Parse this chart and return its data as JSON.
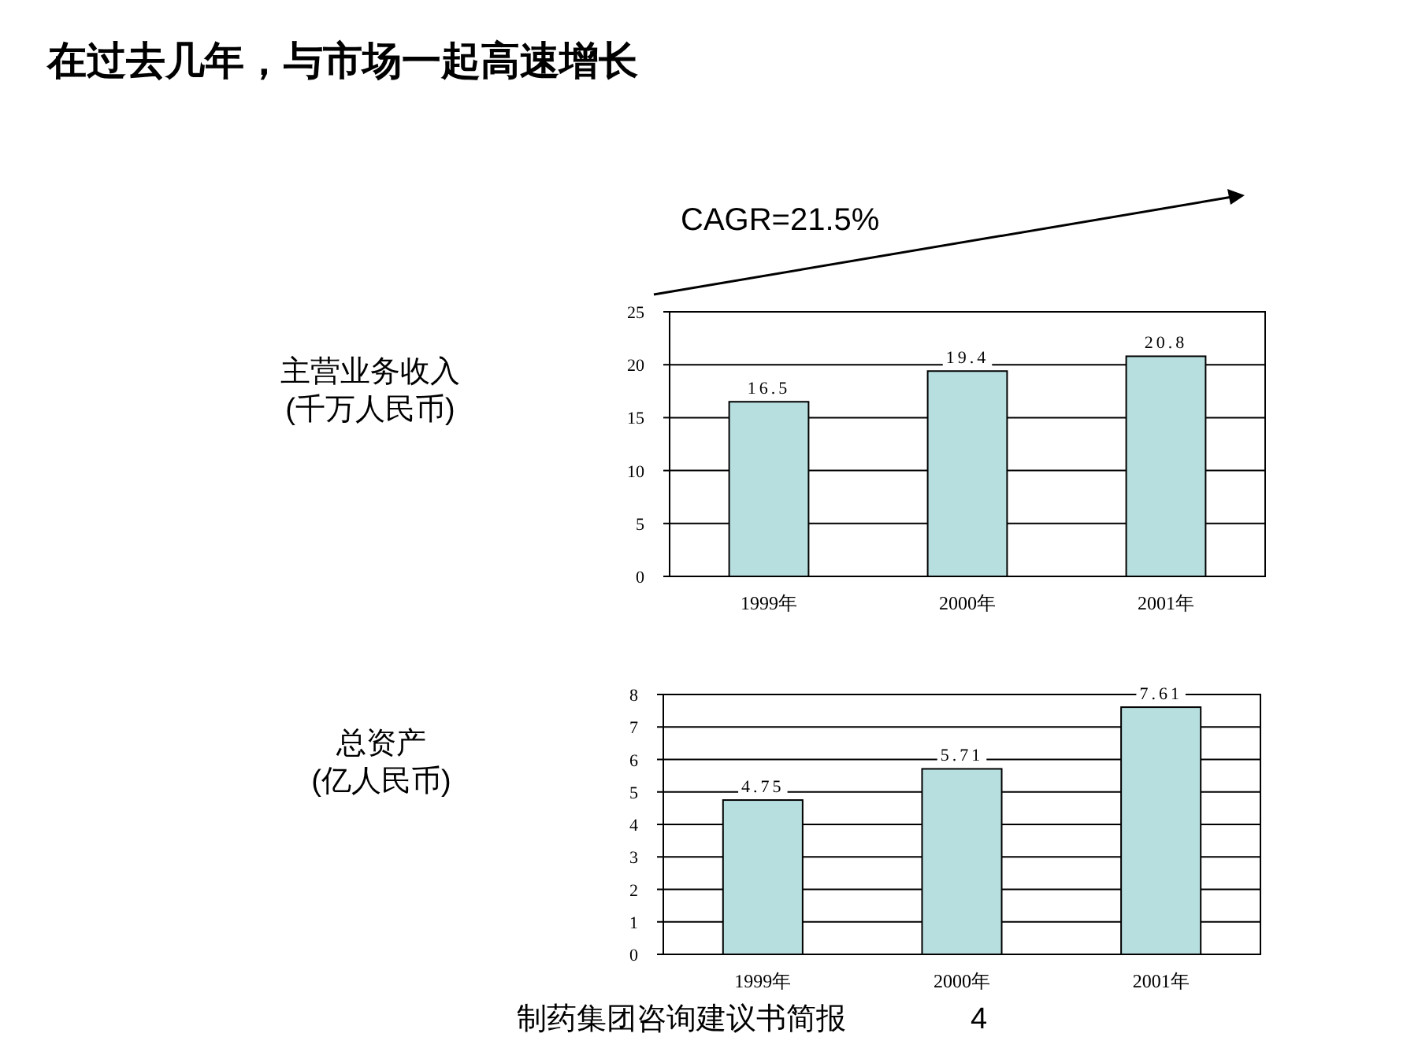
{
  "chart_data": [
    {
      "type": "bar",
      "title": "在过去几年，与市场一起高速增长",
      "ylabel": "主营业务收入\n(千万人民币)",
      "annotations": [
        "CAGR=21.5%"
      ],
      "categories": [
        "1999年",
        "2000年",
        "2001年"
      ],
      "values": [
        16.5,
        19.4,
        20.8
      ],
      "color": "#b8dfe0",
      "ylim": [
        0,
        25
      ],
      "yticks": [
        0,
        5,
        10,
        15,
        20,
        25
      ],
      "grid": "y",
      "data_labels": true
    },
    {
      "type": "bar",
      "ylabel": "总资产\n(亿人民币)",
      "annotations": [
        "制药集团咨询建议书简报",
        "4"
      ],
      "categories": [
        "1999年",
        "2000年",
        "2001年"
      ],
      "values": [
        4.75,
        5.71,
        7.61
      ],
      "color": "#b8dfe0",
      "ylim": [
        0,
        8
      ],
      "yticks": [
        0,
        1,
        2,
        3,
        4,
        5,
        6,
        7,
        8
      ],
      "grid": "y",
      "data_labels": true
    }
  ]
}
